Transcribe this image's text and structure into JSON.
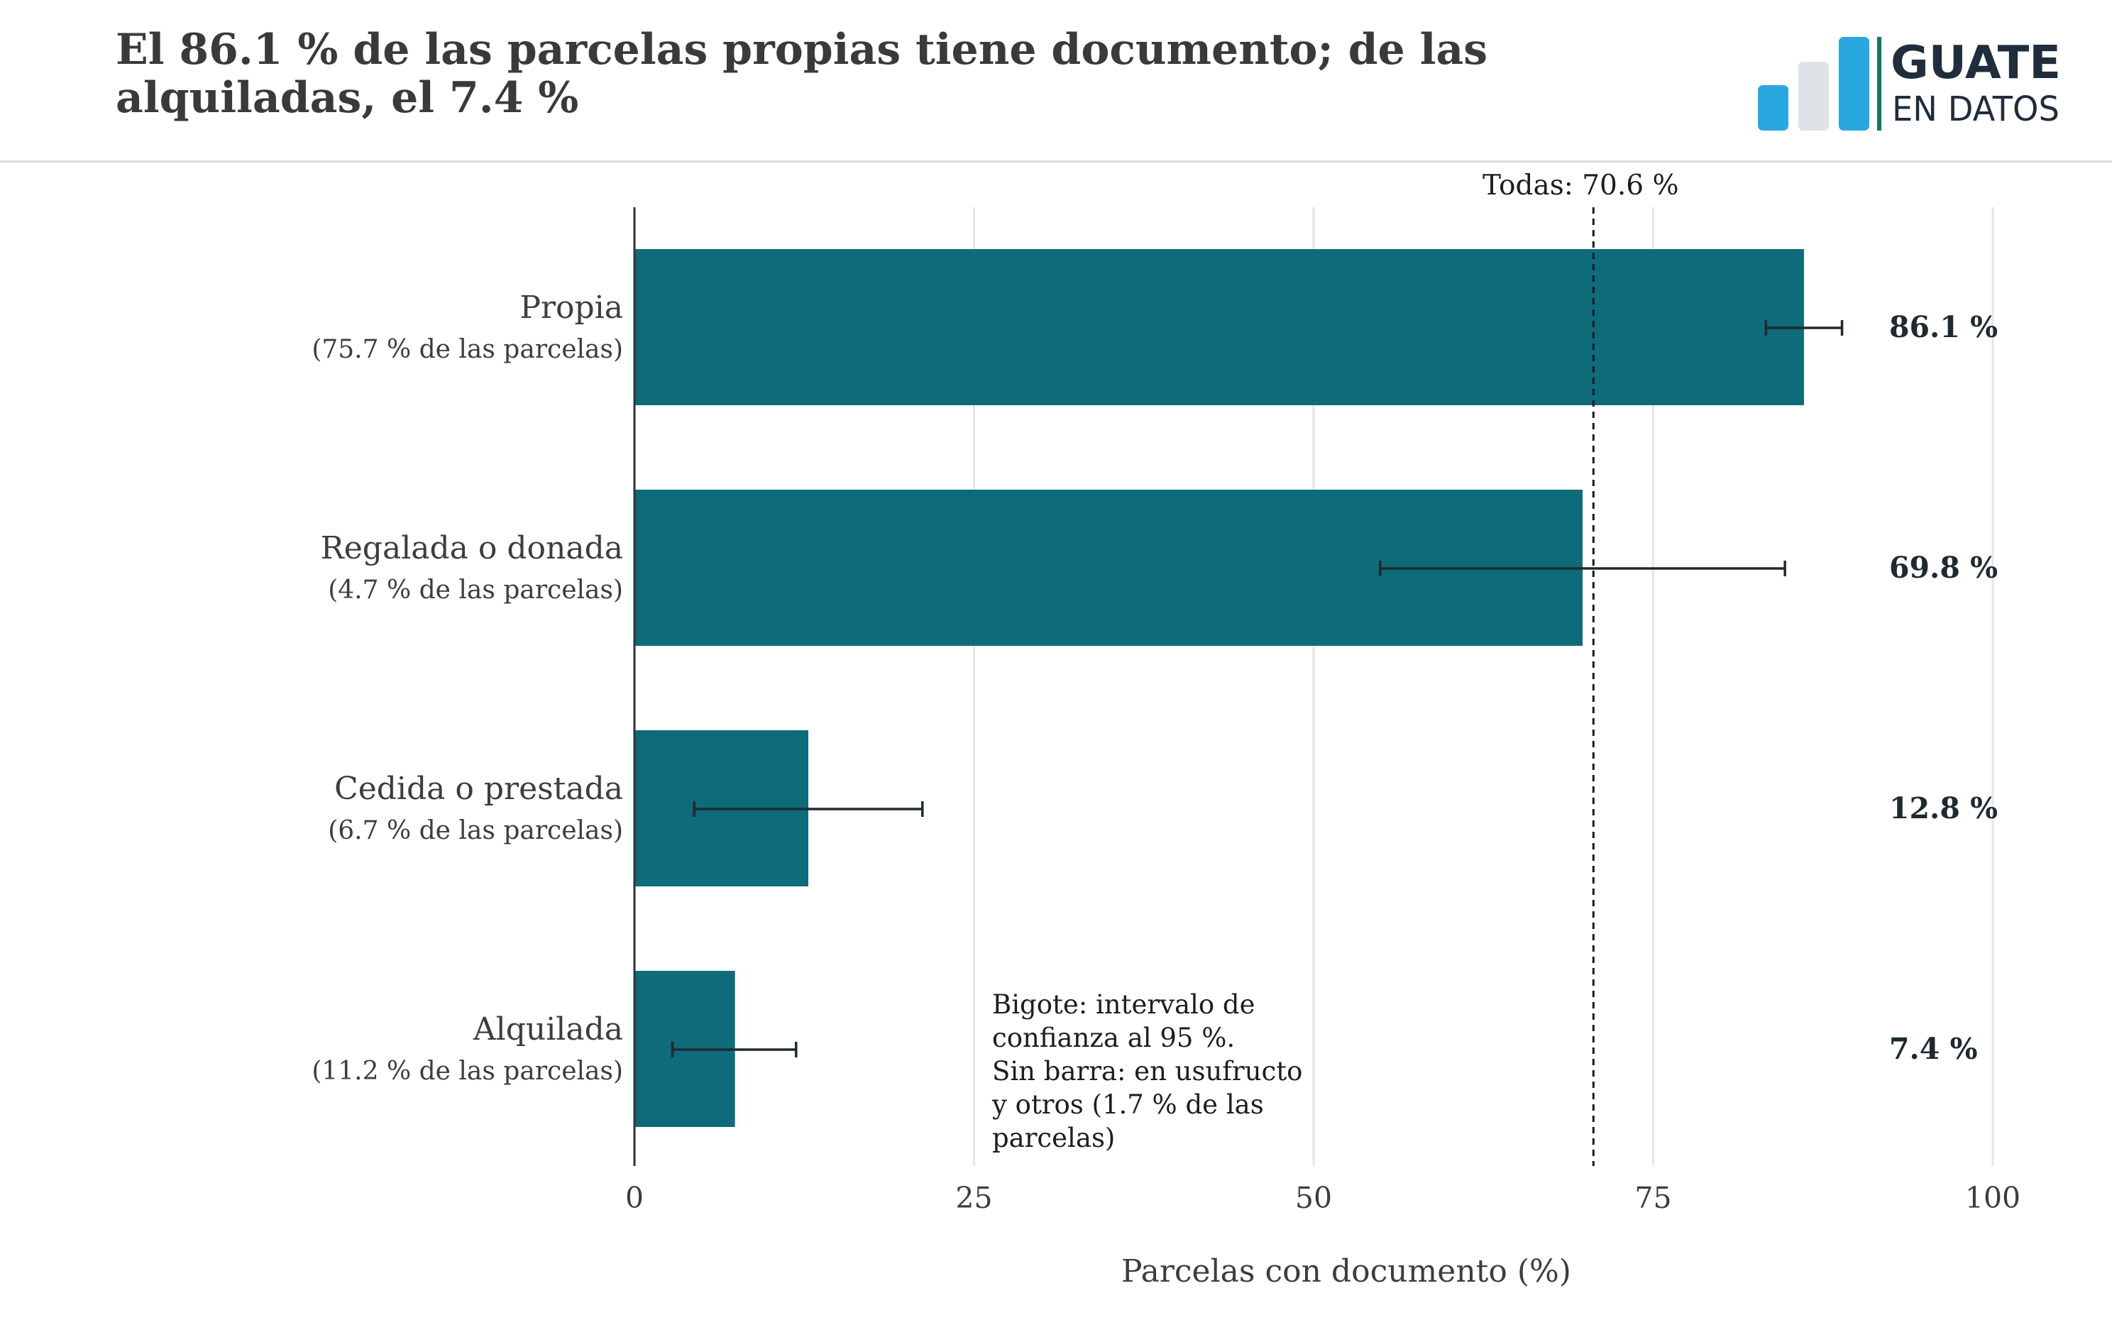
{
  "header": {
    "title": "El 86.1 % de las parcelas propias tiene documento; de las alquiladas, el 7.4 %",
    "logo": {
      "line1": "GUATE",
      "line2": "EN DATOS",
      "colors": [
        "#29a8e0",
        "#dde3e6",
        "#29a8e0",
        "#0f7a5a"
      ]
    }
  },
  "chart_data": {
    "type": "bar",
    "orientation": "horizontal",
    "categories": [
      "Propia",
      "Regalada o donada",
      "Cedida o prestada",
      "Alquilada"
    ],
    "category_sublabels": [
      "(75.7 % de las parcelas)",
      "(4.7 % de las parcelas)",
      "(6.7 % de las parcelas)",
      "(11.2 % de las parcelas)"
    ],
    "values": [
      86.1,
      69.8,
      12.8,
      7.4
    ],
    "value_labels": [
      "86.1 %",
      "69.8 %",
      "12.8 %",
      "7.4 %"
    ],
    "ci_low": [
      83.3,
      54.9,
      4.4,
      2.8
    ],
    "ci_high": [
      88.9,
      84.7,
      21.2,
      11.9
    ],
    "xlabel": "Parcelas con documento (%)",
    "xlim": [
      0,
      100
    ],
    "xticks": [
      0,
      25,
      50,
      75,
      100
    ],
    "reference_line": {
      "value": 70.6,
      "label": "Todas: 70.6 %",
      "style": "dashed"
    },
    "note": [
      "Bigote: intervalo de",
      "confianza al 95 %.",
      "Sin barra: en usufructo",
      "y otros (1.7 % de las",
      "parcelas)"
    ],
    "grid": "vertical",
    "colors": {
      "bar": "#0e6b7a",
      "grid": "#e6e6e6",
      "axis": "#333333",
      "error_bar": "#1f2a2e"
    }
  }
}
